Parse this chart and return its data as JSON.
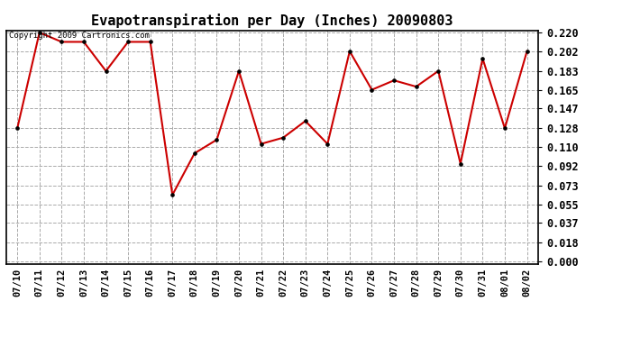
{
  "title": "Evapotranspiration per Day (Inches) 20090803",
  "copyright_text": "Copyright 2009 Cartronics.com",
  "dates": [
    "07/10",
    "07/11",
    "07/12",
    "07/13",
    "07/14",
    "07/15",
    "07/16",
    "07/17",
    "07/18",
    "07/19",
    "07/20",
    "07/21",
    "07/22",
    "07/23",
    "07/24",
    "07/25",
    "07/26",
    "07/27",
    "07/28",
    "07/29",
    "07/30",
    "07/31",
    "08/01",
    "08/02"
  ],
  "values": [
    0.128,
    0.22,
    0.211,
    0.211,
    0.183,
    0.211,
    0.211,
    0.064,
    0.104,
    0.117,
    0.183,
    0.113,
    0.119,
    0.135,
    0.113,
    0.202,
    0.165,
    0.174,
    0.168,
    0.183,
    0.094,
    0.195,
    0.128,
    0.202
  ],
  "line_color": "#cc0000",
  "marker": "o",
  "marker_size": 2.5,
  "ylim": [
    0.0,
    0.22
  ],
  "yticks": [
    0.0,
    0.018,
    0.037,
    0.055,
    0.073,
    0.092,
    0.11,
    0.128,
    0.147,
    0.165,
    0.183,
    0.202,
    0.22
  ],
  "grid_color": "#aaaaaa",
  "bg_color": "#ffffff",
  "title_fontsize": 11,
  "copyright_fontsize": 6.5,
  "tick_fontsize": 7.5,
  "ytick_fontsize": 8.5
}
